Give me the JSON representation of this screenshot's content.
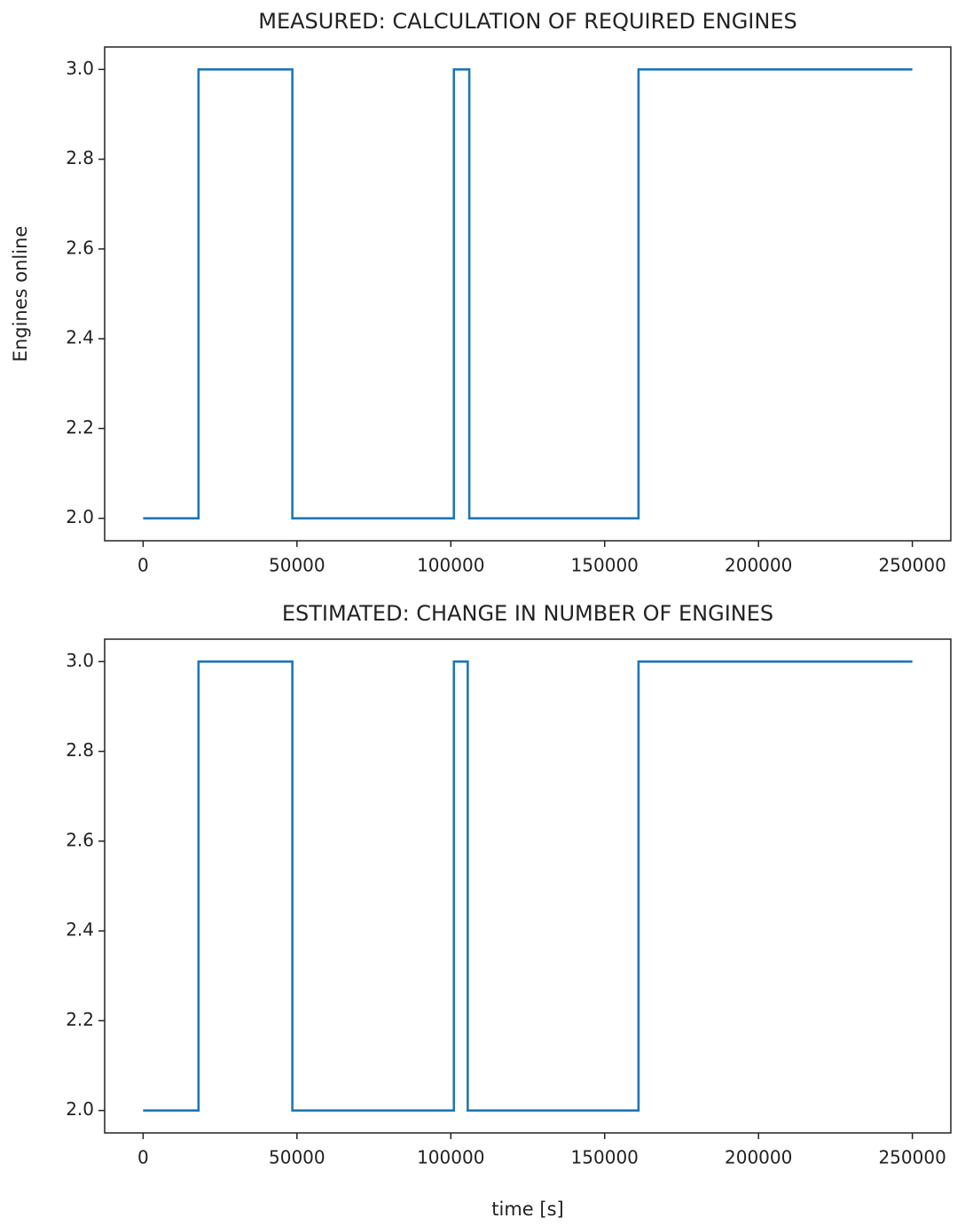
{
  "chart_data": [
    {
      "type": "line",
      "title": "MEASURED: CALCULATION OF REQUIRED ENGINES",
      "y_label": "Engines online",
      "x": [
        0,
        18000,
        18000,
        48500,
        48500,
        101000,
        101000,
        106000,
        106000,
        161000,
        161000,
        250000
      ],
      "series": [
        {
          "color": "#1f77b4",
          "values": [
            2,
            2,
            3,
            3,
            2,
            2,
            3,
            3,
            2,
            2,
            3,
            3
          ]
        }
      ],
      "xlim": [
        -12500,
        262500
      ],
      "xticks": [
        0,
        50000,
        100000,
        150000,
        200000,
        250000
      ],
      "ylim": [
        1.95,
        3.05
      ],
      "yticks": [
        {
          "value": 2,
          "label": "2.0"
        },
        2.2,
        2.4,
        2.6,
        2.8,
        {
          "value": 3,
          "label": "3.0"
        }
      ],
      "grid": false
    },
    {
      "type": "line",
      "title": "ESTIMATED: CHANGE IN NUMBER OF ENGINES",
      "x_label": "time [s]",
      "x": [
        0,
        18000,
        18000,
        48500,
        48500,
        101000,
        101000,
        105500,
        105500,
        161000,
        161000,
        250000
      ],
      "series": [
        {
          "color": "#1f77b4",
          "values": [
            2,
            2,
            3,
            3,
            2,
            2,
            3,
            3,
            2,
            2,
            3,
            3
          ]
        }
      ],
      "xlim": [
        -12500,
        262500
      ],
      "xticks": [
        0,
        50000,
        100000,
        150000,
        200000,
        250000
      ],
      "ylim": [
        1.95,
        3.05
      ],
      "yticks": [
        {
          "value": 2,
          "label": "2.0"
        },
        2.2,
        2.4,
        2.6,
        2.8,
        {
          "value": 3,
          "label": "3.0"
        }
      ],
      "grid": false
    }
  ]
}
